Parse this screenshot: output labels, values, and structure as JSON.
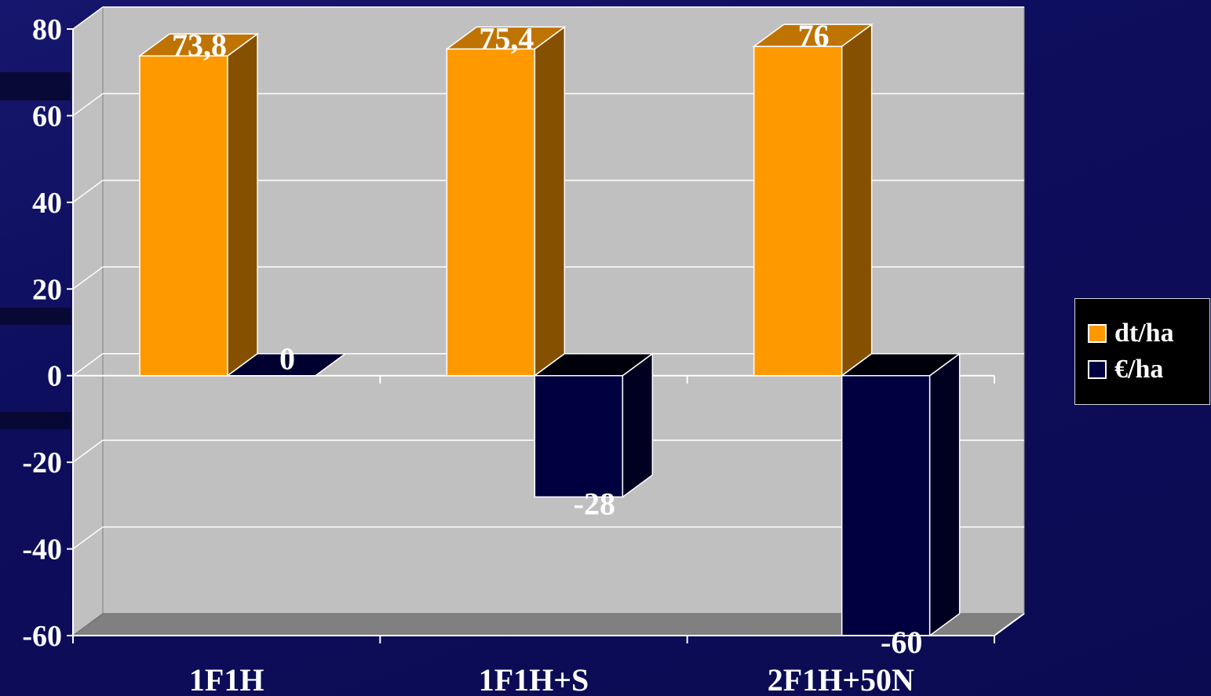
{
  "chart_data": {
    "type": "bar",
    "categories": [
      "1F1H",
      "1F1H+S",
      "2F1H+50N"
    ],
    "series": [
      {
        "name": "dt/ha",
        "values": [
          73.8,
          75.4,
          76
        ],
        "labels": [
          "73,8",
          "75,4",
          "76"
        ],
        "color": "#ff9900"
      },
      {
        "name": "€/ha",
        "values": [
          0,
          -28,
          -60
        ],
        "labels": [
          "0",
          "-28",
          "-60"
        ],
        "color": "#000040"
      }
    ],
    "ylim": [
      -60,
      80
    ],
    "yticks": [
      "80",
      "60",
      "40",
      "20",
      "0",
      "-20",
      "-40",
      "-60"
    ],
    "grid": true,
    "legend": "right",
    "three_d": true
  },
  "legend": {
    "items": [
      {
        "label": "dt/ha",
        "color": "#ff9900"
      },
      {
        "label": "€/ha",
        "color": "#000040"
      }
    ]
  },
  "colors": {
    "background": "#0b0b5a",
    "plot_wall": "#c0c0c0",
    "floor": "#808080",
    "gridline": "#ffffff",
    "axis_text": "#ffffff"
  }
}
